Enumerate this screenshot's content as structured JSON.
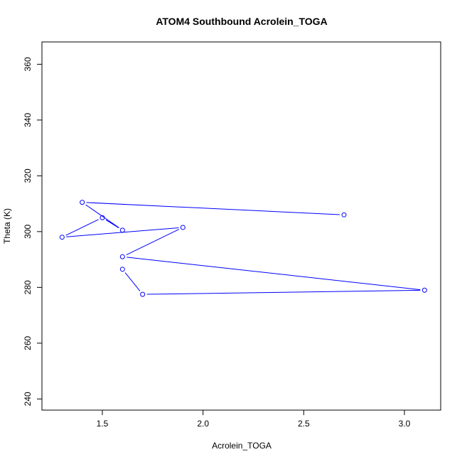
{
  "chart_data": {
    "type": "line",
    "title": "ATOM4 Southbound Acrolein_TOGA",
    "xlabel": "Acrolein_TOGA",
    "ylabel": "Theta (K)",
    "xlim": [
      1.2,
      3.18
    ],
    "ylim": [
      236,
      368
    ],
    "x_ticks": [
      1.5,
      2.0,
      2.5,
      3.0
    ],
    "x_tick_labels": [
      "1.5",
      "2.0",
      "2.5",
      "3.0"
    ],
    "y_ticks": [
      240,
      260,
      280,
      300,
      320,
      340,
      360
    ],
    "y_tick_labels": [
      "240",
      "260",
      "280",
      "300",
      "320",
      "340",
      "360"
    ],
    "grid": false,
    "marker": "open-circle",
    "series": [
      {
        "color": "#0000ff",
        "x": [
          2.7,
          1.4,
          1.6,
          1.5,
          1.3,
          1.9,
          1.6,
          3.1,
          1.7,
          1.6
        ],
        "y": [
          306.0,
          310.5,
          300.5,
          305.0,
          298.0,
          301.5,
          291.0,
          279.0,
          277.5,
          286.5
        ]
      }
    ]
  }
}
